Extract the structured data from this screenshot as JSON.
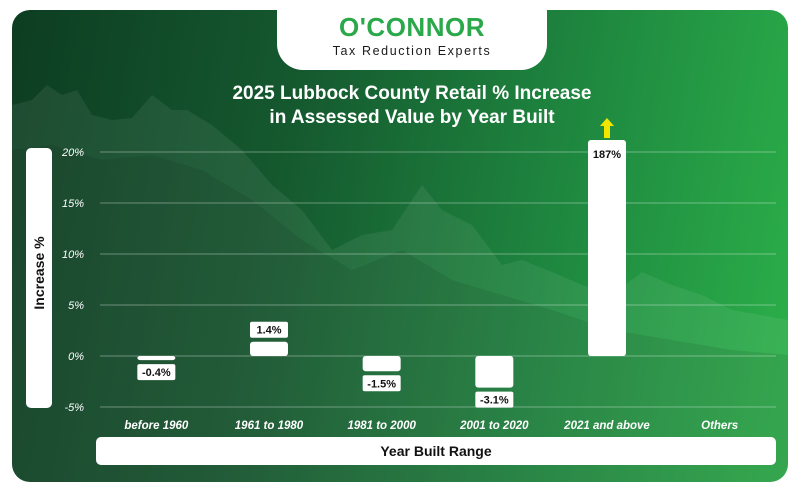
{
  "brand": {
    "name": "O'CONNOR",
    "tagline": "Tax Reduction Experts"
  },
  "colors": {
    "brand_green": "#2aa84a",
    "bar": "#ffffff",
    "arrow": "#f2e600"
  },
  "chart_data": {
    "type": "bar",
    "title_line1": "2025 Lubbock County Retail % Increase",
    "title_line2": "in Assessed Value by Year Built",
    "xlabel": "Year Built Range",
    "ylabel": "Increase %",
    "ylim": [
      -5,
      20
    ],
    "yticks": [
      -5,
      0,
      5,
      10,
      15,
      20
    ],
    "ytick_labels": [
      "-5%",
      "0%",
      "5%",
      "10%",
      "15%",
      "20%"
    ],
    "categories": [
      "before 1960",
      "1961 to 1980",
      "1981 to 2000",
      "2001 to 2020",
      "2021 and above",
      "Others"
    ],
    "values": [
      -0.4,
      1.4,
      -1.5,
      -3.1,
      187,
      null
    ],
    "data_labels": [
      "-0.4%",
      "1.4%",
      "-1.5%",
      "-3.1%",
      "187%",
      ""
    ],
    "truncated_above_axis": [
      false,
      false,
      false,
      false,
      true,
      false
    ],
    "grid": true,
    "legend": "none"
  }
}
